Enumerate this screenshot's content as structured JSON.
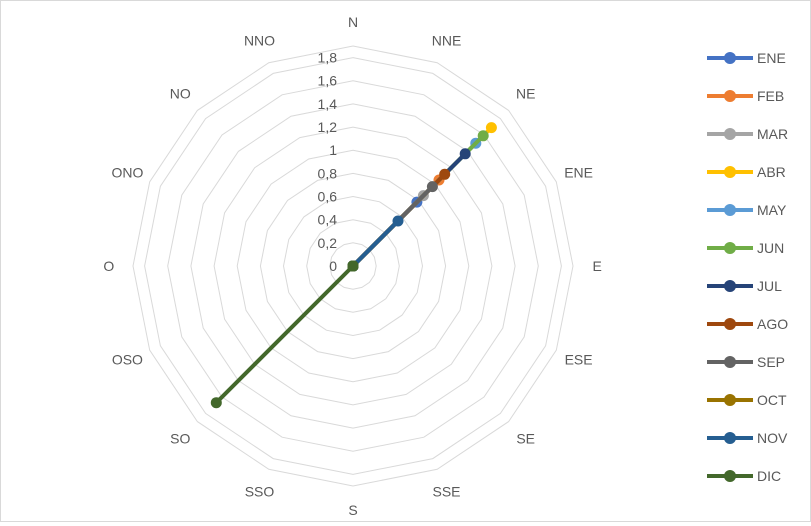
{
  "chart_data": {
    "type": "radar",
    "title": "",
    "directions": [
      "N",
      "NNE",
      "NE",
      "ENE",
      "E",
      "ESE",
      "SE",
      "SSE",
      "S",
      "SSO",
      "SO",
      "OSO",
      "O",
      "ONO",
      "NO",
      "NNO"
    ],
    "r_ticks": [
      "0",
      "0,2",
      "0,4",
      "0,6",
      "0,8",
      "1",
      "1,2",
      "1,4",
      "1,6",
      "1,8"
    ],
    "rlim": [
      0,
      1.9
    ],
    "grid": true,
    "legend_position": "right",
    "series": [
      {
        "name": "ENE",
        "color": "#4472C4",
        "values": [
          0,
          0,
          0.78,
          0,
          0,
          0,
          0,
          0,
          0,
          0,
          0,
          0,
          0,
          0,
          0,
          0
        ]
      },
      {
        "name": "FEB",
        "color": "#ED7D31",
        "values": [
          0,
          0,
          1.05,
          0,
          0,
          0,
          0,
          0,
          0,
          0,
          0,
          0,
          0,
          0,
          0,
          0
        ]
      },
      {
        "name": "MAR",
        "color": "#A5A5A5",
        "values": [
          0,
          0,
          0.86,
          0,
          0,
          0,
          0,
          0,
          0,
          0,
          0,
          0,
          0,
          0,
          0,
          0
        ]
      },
      {
        "name": "ABR",
        "color": "#FFC000",
        "values": [
          0,
          0,
          1.69,
          0,
          0,
          0,
          0,
          0,
          0,
          0,
          0,
          0,
          0,
          0,
          0,
          0
        ]
      },
      {
        "name": "MAY",
        "color": "#5B9BD5",
        "values": [
          0,
          0,
          1.5,
          0,
          0,
          0,
          0,
          0,
          0,
          0,
          0,
          0,
          0,
          0,
          0,
          0
        ]
      },
      {
        "name": "JUN",
        "color": "#70AD47",
        "values": [
          0,
          0,
          1.59,
          0,
          0,
          0,
          0,
          0,
          0,
          0,
          0,
          0,
          0,
          0,
          0,
          0
        ]
      },
      {
        "name": "JUL",
        "color": "#264478",
        "values": [
          0,
          0,
          1.37,
          0,
          0,
          0,
          0,
          0,
          0,
          0,
          0,
          0,
          0,
          0,
          0,
          0
        ]
      },
      {
        "name": "AGO",
        "color": "#9E480E",
        "values": [
          0,
          0,
          1.12,
          0,
          0,
          0,
          0,
          0,
          0,
          0,
          0,
          0,
          0,
          0,
          0,
          0
        ]
      },
      {
        "name": "SEP",
        "color": "#636363",
        "values": [
          0,
          0,
          0.97,
          0,
          0,
          0,
          0,
          0,
          0,
          0,
          0,
          0,
          0,
          0,
          0,
          0
        ]
      },
      {
        "name": "OCT",
        "color": "#997300",
        "values": [
          0,
          0,
          0,
          0,
          0,
          0,
          0,
          0,
          0,
          0,
          0,
          0,
          0,
          0,
          0,
          0
        ]
      },
      {
        "name": "NOV",
        "color": "#255E91",
        "values": [
          0,
          0,
          0.55,
          0,
          0,
          0,
          0,
          0,
          0,
          0,
          0,
          0,
          0,
          0,
          0,
          0
        ]
      },
      {
        "name": "DIC",
        "color": "#43682B",
        "values": [
          0,
          0,
          0,
          0,
          0,
          0,
          0,
          0,
          0,
          0,
          1.67,
          0,
          0,
          0,
          0,
          0
        ]
      }
    ]
  }
}
